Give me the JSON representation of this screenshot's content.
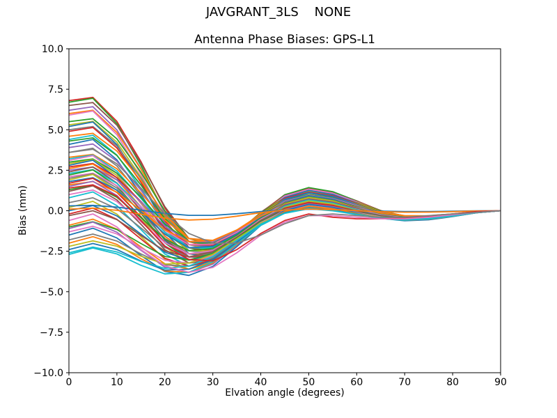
{
  "chart_data": {
    "type": "line",
    "suptitle": "JAVGRANT_3LS    NONE",
    "title": "Antenna Phase Biases: GPS-L1",
    "xlabel": "Elvation angle (degrees)",
    "ylabel": "Bias (mm)",
    "xlim": [
      0,
      90
    ],
    "ylim": [
      -10,
      10
    ],
    "x_ticks": [
      0,
      10,
      20,
      30,
      40,
      50,
      60,
      70,
      80,
      90
    ],
    "x_tick_labels": [
      "0",
      "10",
      "20",
      "30",
      "40",
      "50",
      "60",
      "70",
      "80",
      "90"
    ],
    "y_ticks": [
      10,
      7.5,
      5,
      2.5,
      0,
      -2.5,
      -5,
      -7.5,
      -10
    ],
    "y_tick_labels": [
      "10.0",
      "7.5",
      "5.0",
      "2.5",
      "0.0",
      "−2.5",
      "−5.0",
      "−7.5",
      "−10.0"
    ],
    "grid": false,
    "legend": "none",
    "line_width": 1.8,
    "background": "#ffffff",
    "axis_color": "#000000",
    "palette": [
      "#1f77b4",
      "#ff7f0e",
      "#2ca02c",
      "#d62728",
      "#9467bd",
      "#8c564b",
      "#e377c2",
      "#7f7f7f",
      "#bcbd22",
      "#17becf"
    ],
    "x": [
      0,
      5,
      10,
      15,
      20,
      25,
      30,
      35,
      40,
      45,
      50,
      55,
      60,
      65,
      70,
      75,
      80,
      85,
      90
    ],
    "series_model": "values[k] = start * basis.decay[k] + dip_weight * basis.dip[k], unless explicit values given; all curves end at 0.0 mm at 90 degrees",
    "basis": {
      "decay": [
        1.0,
        1.0,
        0.84,
        0.58,
        0.26,
        0.0,
        -0.09,
        -0.06,
        0.04,
        0.13,
        0.16,
        0.14,
        0.09,
        0.03,
        -0.01,
        -0.02,
        -0.01,
        0.0,
        0.0
      ],
      "dip": [
        0.0,
        0.2,
        -0.2,
        -0.9,
        -1.6,
        -1.9,
        -1.7,
        -1.1,
        -0.4,
        0.1,
        0.3,
        0.2,
        0.0,
        -0.2,
        -0.3,
        -0.28,
        -0.18,
        -0.06,
        0.0
      ]
    },
    "series": [
      {
        "color": "#d62728",
        "start": 6.8,
        "dip_weight": 1.0
      },
      {
        "color": "#2ca02c",
        "start": 6.7,
        "dip_weight": 1.2
      },
      {
        "color": "#8c564b",
        "start": 6.5,
        "dip_weight": 0.9
      },
      {
        "color": "#9467bd",
        "start": 6.2,
        "dip_weight": 1.1
      },
      {
        "color": "#ff7f0e",
        "start": 6.0,
        "dip_weight": 1.0
      },
      {
        "color": "#e377c2",
        "start": 5.9,
        "dip_weight": 1.3
      },
      {
        "color": "#2ca02c",
        "start": 5.5,
        "dip_weight": 0.9
      },
      {
        "color": "#bcbd22",
        "start": 5.3,
        "dip_weight": 1.1
      },
      {
        "color": "#1f77b4",
        "start": 5.2,
        "dip_weight": 1.4
      },
      {
        "color": "#7f7f7f",
        "start": 5.0,
        "dip_weight": 1.0
      },
      {
        "color": "#d62728",
        "start": 4.9,
        "dip_weight": 1.2
      },
      {
        "color": "#ff7f0e",
        "start": 4.6,
        "dip_weight": 0.9
      },
      {
        "color": "#17becf",
        "start": 4.4,
        "dip_weight": 1.3
      },
      {
        "color": "#2ca02c",
        "start": 4.3,
        "dip_weight": 1.0
      },
      {
        "color": "#1f77b4",
        "start": 4.1,
        "dip_weight": 1.5
      },
      {
        "color": "#9467bd",
        "start": 3.9,
        "dip_weight": 1.1
      },
      {
        "color": "#7f7f7f",
        "start": 3.6,
        "dip_weight": 1.3
      },
      {
        "color": "#ff7f0e",
        "start": 3.3,
        "dip_weight": 0.9
      },
      {
        "color": "#17becf",
        "start": 3.2,
        "dip_weight": 1.2
      },
      {
        "color": "#e377c2",
        "start": 3.1,
        "dip_weight": 1.5
      },
      {
        "color": "#2ca02c",
        "start": 3.0,
        "dip_weight": 1.0
      },
      {
        "color": "#bcbd22",
        "start": 2.9,
        "dip_weight": 1.3
      },
      {
        "color": "#1f77b4",
        "start": 2.8,
        "dip_weight": 1.6
      },
      {
        "color": "#d62728",
        "start": 2.7,
        "dip_weight": 1.1
      },
      {
        "color": "#ff7f0e",
        "start": 2.6,
        "dip_weight": 1.4
      },
      {
        "color": "#9467bd",
        "start": 2.5,
        "dip_weight": 1.0
      },
      {
        "color": "#8c564b",
        "start": 2.4,
        "dip_weight": 1.5
      },
      {
        "color": "#17becf",
        "start": 2.3,
        "dip_weight": 1.2
      },
      {
        "color": "#2ca02c",
        "start": 2.2,
        "dip_weight": 1.6
      },
      {
        "color": "#e377c2",
        "start": 2.1,
        "dip_weight": 1.1
      },
      {
        "color": "#7f7f7f",
        "start": 2.0,
        "dip_weight": 1.4
      },
      {
        "color": "#bcbd22",
        "start": 1.9,
        "dip_weight": 1.7
      },
      {
        "color": "#1f77b4",
        "start": 1.8,
        "dip_weight": 1.2
      },
      {
        "color": "#d62728",
        "start": 1.7,
        "dip_weight": 1.5
      },
      {
        "color": "#ff7f0e",
        "start": 1.6,
        "dip_weight": 1.0
      },
      {
        "color": "#9467bd",
        "start": 1.5,
        "dip_weight": 1.6
      },
      {
        "color": "#2ca02c",
        "start": 1.3,
        "dip_weight": 1.3
      },
      {
        "color": "#8c564b",
        "start": 1.2,
        "dip_weight": 1.7
      },
      {
        "color": "#e377c2",
        "start": 1.0,
        "dip_weight": 1.4
      },
      {
        "color": "#17becf",
        "start": 0.8,
        "dip_weight": 1.8
      },
      {
        "color": "#7f7f7f",
        "start": 0.5,
        "dip_weight": 1.5
      },
      {
        "color": "#bcbd22",
        "start": 0.2,
        "dip_weight": 1.9
      },
      {
        "color": "#1f77b4",
        "start": 0.0,
        "dip_weight": 1.6
      },
      {
        "color": "#d62728",
        "start": -0.2,
        "dip_weight": 1.8
      },
      {
        "color": "#8c564b",
        "start": -0.3,
        "dip_weight": 1.5
      },
      {
        "color": "#ff7f0e",
        "start": -0.9,
        "dip_weight": 1.9
      },
      {
        "color": "#2ca02c",
        "start": -1.0,
        "dip_weight": 1.6
      },
      {
        "color": "#9467bd",
        "start": -1.1,
        "dip_weight": 2.0
      },
      {
        "color": "#e377c2",
        "start": -1.3,
        "dip_weight": 1.7
      },
      {
        "color": "#1f77b4",
        "start": -1.5,
        "dip_weight": 2.1
      },
      {
        "color": "#7f7f7f",
        "start": -1.8,
        "dip_weight": 1.8
      },
      {
        "color": "#ff7f0e",
        "start": -2.0,
        "dip_weight": 2.0
      },
      {
        "color": "#bcbd22",
        "start": -2.2,
        "dip_weight": 1.7
      },
      {
        "color": "#1f77b4",
        "start": -2.4,
        "dip_weight": 1.9
      },
      {
        "color": "#17becf",
        "start": -2.6,
        "dip_weight": 1.8
      },
      {
        "color": "#17becf",
        "start": -2.7,
        "dip_weight": 2.0
      },
      {
        "color": "#1f77b4",
        "start": 0.3,
        "dip_weight": 0.15
      },
      {
        "color": "#ff7f0e",
        "start": 0.1,
        "dip_weight": 0.3
      },
      {
        "color": "#d62728",
        "start": 1.4,
        "dip_weight": 1.0,
        "values": [
          1.4,
          1.6,
          0.9,
          -0.6,
          -2.2,
          -3.0,
          -3.1,
          -2.4,
          -1.4,
          -0.6,
          -0.2,
          -0.4,
          -0.5,
          -0.5,
          -0.45,
          -0.35,
          -0.2,
          -0.05,
          0.0
        ]
      },
      {
        "color": "#e377c2",
        "start": -0.6,
        "dip_weight": 1.0,
        "values": [
          -0.6,
          -0.2,
          -1.0,
          -2.4,
          -3.4,
          -3.8,
          -3.5,
          -2.6,
          -1.5,
          -0.7,
          -0.3,
          -0.3,
          -0.4,
          -0.5,
          -0.5,
          -0.4,
          -0.25,
          -0.1,
          0.0
        ]
      },
      {
        "color": "#7f7f7f",
        "start": 3.6,
        "dip_weight": 1.0,
        "values": [
          3.6,
          3.8,
          2.9,
          1.4,
          -0.2,
          -1.4,
          -2.0,
          -2.0,
          -1.5,
          -0.8,
          -0.3,
          -0.2,
          -0.3,
          -0.4,
          -0.4,
          -0.3,
          -0.2,
          -0.1,
          0.0
        ]
      }
    ]
  }
}
